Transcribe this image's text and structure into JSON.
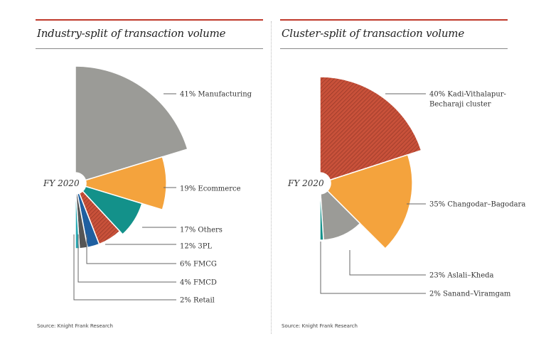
{
  "colors": {
    "accent_red": "#c0392b",
    "grey": "#9b9b97",
    "orange": "#f4a33d",
    "teal": "#13918a",
    "rust": "#c8513a",
    "navy": "#1f5fa0",
    "dark_grey": "#555555",
    "light_teal": "#27a9b4"
  },
  "chart_data": [
    {
      "type": "pie",
      "title": "Industry-split of transaction volume",
      "center_label": "FY 2020",
      "source": "Source: Knight Frank Research",
      "slices": [
        {
          "label": "41% Manufacturing",
          "value": 41,
          "color": "#9b9b97",
          "pattern": "none"
        },
        {
          "label": "19% Ecommerce",
          "value": 19,
          "color": "#f4a33d",
          "pattern": "none"
        },
        {
          "label": "17% Others",
          "value": 17,
          "color": "#13918a",
          "pattern": "none"
        },
        {
          "label": "12% 3PL",
          "value": 12,
          "color": "#c8513a",
          "pattern": "hatch"
        },
        {
          "label": "6% FMCG",
          "value": 6,
          "color": "#1f5fa0",
          "pattern": "none"
        },
        {
          "label": "4% FMCD",
          "value": 4,
          "color": "#555555",
          "pattern": "none"
        },
        {
          "label": "2% Retail",
          "value": 2,
          "color": "#27a9b4",
          "pattern": "none"
        }
      ]
    },
    {
      "type": "pie",
      "title": "Cluster-split of transaction volume",
      "center_label": "FY 2020",
      "source": "Source: Knight Frank Research",
      "slices": [
        {
          "label": "40% Kadi-Vithalapur-\nBecharaji cluster",
          "value": 40,
          "color": "#c8513a",
          "pattern": "hatch"
        },
        {
          "label": "35% Changodar–Bagodara",
          "value": 35,
          "color": "#f4a33d",
          "pattern": "none"
        },
        {
          "label": "23% Aslali–Kheda",
          "value": 23,
          "color": "#9b9b97",
          "pattern": "none"
        },
        {
          "label": "2% Sanand–Viramgam",
          "value": 2,
          "color": "#13918a",
          "pattern": "none"
        }
      ]
    }
  ]
}
